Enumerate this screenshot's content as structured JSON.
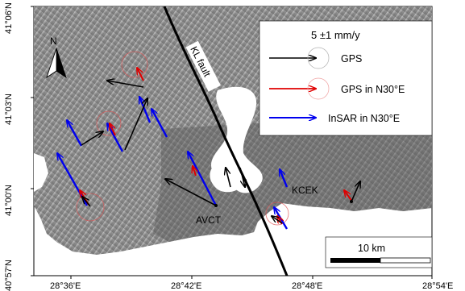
{
  "map": {
    "axes": {
      "y_ticks": [
        "41°06'N",
        "41°03'N",
        "41°00'N",
        "40°57'N"
      ],
      "x_ticks": [
        "28°36'E",
        "28°42'E",
        "28°48'E",
        "28°54'E"
      ]
    },
    "north_label": "N",
    "fault_label": "KL fault",
    "stations": [
      "KCEK",
      "AVCT"
    ],
    "scale_bar": {
      "label": "10 km",
      "length_km": 10
    },
    "legend": {
      "title": "5 ±1 mm/y",
      "entries": [
        {
          "label": "GPS",
          "color": "#000000"
        },
        {
          "label": "GPS in N30°E",
          "color": "#e00000"
        },
        {
          "label": "InSAR in N30°E",
          "color": "#0000ee"
        }
      ]
    }
  }
}
